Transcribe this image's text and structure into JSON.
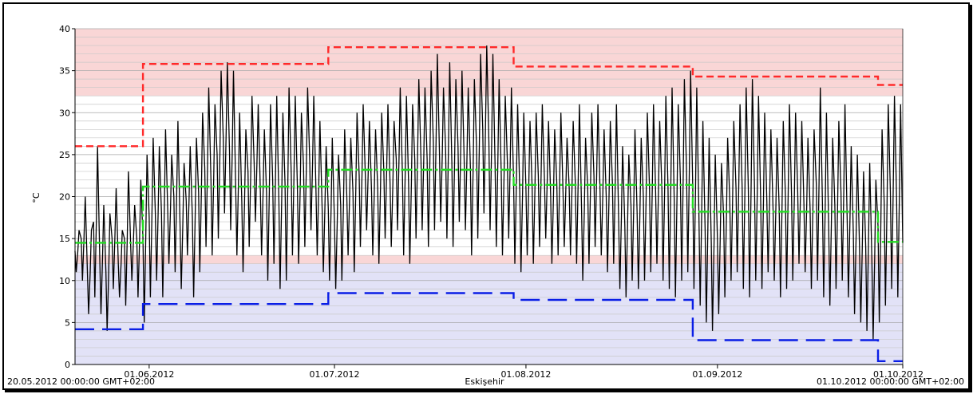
{
  "chart_data": {
    "type": "line",
    "location": "Eskişehir",
    "ylabel": "°C",
    "ylim": [
      0,
      40
    ],
    "yticks": [
      0,
      5,
      10,
      15,
      20,
      25,
      30,
      35,
      40
    ],
    "x_start": "20.05.2012 00:00:00 GMT+02:00",
    "x_end": "01.10.2012 00:00:00 GMT+02:00",
    "x_ticks": [
      {
        "label": "01.06.2012",
        "date": "2012-06-01"
      },
      {
        "label": "01.07.2012",
        "date": "2012-07-01"
      },
      {
        "label": "01.08.2012",
        "date": "2012-08-01"
      },
      {
        "label": "01.09.2012",
        "date": "2012-09-01"
      },
      {
        "label": "01.10.2012",
        "date": "2012-10-01"
      }
    ],
    "grid": true,
    "bands": [
      {
        "from": 32,
        "to": 40,
        "color": "#f9d6d6"
      },
      {
        "from": 12,
        "to": 13,
        "color": "#f9d6d6"
      },
      {
        "from": 0,
        "to": 12,
        "color": "#e2e2f7"
      }
    ],
    "series": [
      {
        "style": "dashed",
        "color": "#ff2a2a",
        "steps": [
          {
            "from": "2012-05-20",
            "to": "2012-05-31",
            "value": 26.0
          },
          {
            "from": "2012-05-31",
            "to": "2012-06-30",
            "value": 35.8
          },
          {
            "from": "2012-06-30",
            "to": "2012-07-30",
            "value": 37.8
          },
          {
            "from": "2012-07-30",
            "to": "2012-08-28",
            "value": 35.5
          },
          {
            "from": "2012-08-28",
            "to": "2012-09-27",
            "value": 34.3
          },
          {
            "from": "2012-09-27",
            "to": "2012-10-01",
            "value": 33.3
          }
        ]
      },
      {
        "style": "dash-dot",
        "color": "#22dd22",
        "steps": [
          {
            "from": "2012-05-20",
            "to": "2012-05-31",
            "value": 14.5
          },
          {
            "from": "2012-05-31",
            "to": "2012-06-30",
            "value": 21.2
          },
          {
            "from": "2012-06-30",
            "to": "2012-07-30",
            "value": 23.2
          },
          {
            "from": "2012-07-30",
            "to": "2012-08-28",
            "value": 21.4
          },
          {
            "from": "2012-08-28",
            "to": "2012-09-27",
            "value": 18.2
          },
          {
            "from": "2012-09-27",
            "to": "2012-10-01",
            "value": 14.6
          }
        ]
      },
      {
        "style": "long-dash",
        "color": "#0a1ee6",
        "steps": [
          {
            "from": "2012-05-20",
            "to": "2012-05-31",
            "value": 4.2
          },
          {
            "from": "2012-05-31",
            "to": "2012-06-30",
            "value": 7.2
          },
          {
            "from": "2012-06-30",
            "to": "2012-07-30",
            "value": 8.5
          },
          {
            "from": "2012-07-30",
            "to": "2012-08-28",
            "value": 7.7
          },
          {
            "from": "2012-08-28",
            "to": "2012-09-27",
            "value": 2.9
          },
          {
            "from": "2012-09-27",
            "to": "2012-10-01",
            "value": 0.4
          }
        ]
      },
      {
        "style": "solid",
        "color": "#000000",
        "resolution": "6-hourly (min / mid / max / mid per day)",
        "daily_minmax": [
          [
            "2012-05-20",
            11,
            16
          ],
          [
            "2012-05-21",
            10,
            20
          ],
          [
            "2012-05-22",
            6,
            16
          ],
          [
            "2012-05-23",
            8,
            26
          ],
          [
            "2012-05-24",
            6,
            19
          ],
          [
            "2012-05-25",
            4,
            18
          ],
          [
            "2012-05-26",
            9,
            21
          ],
          [
            "2012-05-27",
            8,
            16
          ],
          [
            "2012-05-28",
            7,
            23
          ],
          [
            "2012-05-29",
            10,
            19
          ],
          [
            "2012-05-30",
            8,
            22
          ],
          [
            "2012-05-31",
            5,
            25
          ],
          [
            "2012-06-01",
            8,
            27
          ],
          [
            "2012-06-02",
            10,
            26
          ],
          [
            "2012-06-03",
            8,
            28
          ],
          [
            "2012-06-04",
            12,
            25
          ],
          [
            "2012-06-05",
            11,
            29
          ],
          [
            "2012-06-06",
            9,
            24
          ],
          [
            "2012-06-07",
            13,
            26
          ],
          [
            "2012-06-08",
            8,
            27
          ],
          [
            "2012-06-09",
            11,
            30
          ],
          [
            "2012-06-10",
            14,
            33
          ],
          [
            "2012-06-11",
            13,
            31
          ],
          [
            "2012-06-12",
            15,
            35
          ],
          [
            "2012-06-13",
            18,
            36
          ],
          [
            "2012-06-14",
            16,
            35
          ],
          [
            "2012-06-15",
            13,
            30
          ],
          [
            "2012-06-16",
            11,
            28
          ],
          [
            "2012-06-17",
            14,
            32
          ],
          [
            "2012-06-18",
            17,
            31
          ],
          [
            "2012-06-19",
            13,
            28
          ],
          [
            "2012-06-20",
            10,
            31
          ],
          [
            "2012-06-21",
            12,
            32
          ],
          [
            "2012-06-22",
            9,
            30
          ],
          [
            "2012-06-23",
            10,
            33
          ],
          [
            "2012-06-24",
            13,
            32
          ],
          [
            "2012-06-25",
            12,
            30
          ],
          [
            "2012-06-26",
            14,
            33
          ],
          [
            "2012-06-27",
            16,
            32
          ],
          [
            "2012-06-28",
            13,
            29
          ],
          [
            "2012-06-29",
            11,
            26
          ],
          [
            "2012-06-30",
            10,
            27
          ],
          [
            "2012-07-01",
            9,
            25
          ],
          [
            "2012-07-02",
            10,
            28
          ],
          [
            "2012-07-03",
            13,
            27
          ],
          [
            "2012-07-04",
            11,
            30
          ],
          [
            "2012-07-05",
            14,
            31
          ],
          [
            "2012-07-06",
            16,
            29
          ],
          [
            "2012-07-07",
            13,
            28
          ],
          [
            "2012-07-08",
            12,
            30
          ],
          [
            "2012-07-09",
            15,
            31
          ],
          [
            "2012-07-10",
            14,
            29
          ],
          [
            "2012-07-11",
            16,
            33
          ],
          [
            "2012-07-12",
            13,
            32
          ],
          [
            "2012-07-13",
            12,
            31
          ],
          [
            "2012-07-14",
            15,
            34
          ],
          [
            "2012-07-15",
            16,
            33
          ],
          [
            "2012-07-16",
            14,
            35
          ],
          [
            "2012-07-17",
            16,
            37
          ],
          [
            "2012-07-18",
            17,
            33
          ],
          [
            "2012-07-19",
            15,
            36
          ],
          [
            "2012-07-20",
            14,
            34
          ],
          [
            "2012-07-21",
            17,
            35
          ],
          [
            "2012-07-22",
            16,
            33
          ],
          [
            "2012-07-23",
            13,
            34
          ],
          [
            "2012-07-24",
            15,
            37
          ],
          [
            "2012-07-25",
            18,
            38
          ],
          [
            "2012-07-26",
            16,
            37
          ],
          [
            "2012-07-27",
            14,
            34
          ],
          [
            "2012-07-28",
            13,
            32
          ],
          [
            "2012-07-29",
            15,
            33
          ],
          [
            "2012-07-30",
            12,
            31
          ],
          [
            "2012-07-31",
            11,
            30
          ],
          [
            "2012-08-01",
            13,
            29
          ],
          [
            "2012-08-02",
            12,
            30
          ],
          [
            "2012-08-03",
            14,
            31
          ],
          [
            "2012-08-04",
            15,
            29
          ],
          [
            "2012-08-05",
            12,
            28
          ],
          [
            "2012-08-06",
            13,
            30
          ],
          [
            "2012-08-07",
            14,
            27
          ],
          [
            "2012-08-08",
            13,
            29
          ],
          [
            "2012-08-09",
            12,
            31
          ],
          [
            "2012-08-10",
            10,
            27
          ],
          [
            "2012-08-11",
            12,
            30
          ],
          [
            "2012-08-12",
            14,
            31
          ],
          [
            "2012-08-13",
            13,
            28
          ],
          [
            "2012-08-14",
            11,
            29
          ],
          [
            "2012-08-15",
            12,
            31
          ],
          [
            "2012-08-16",
            9,
            26
          ],
          [
            "2012-08-17",
            8,
            25
          ],
          [
            "2012-08-18",
            10,
            28
          ],
          [
            "2012-08-19",
            9,
            27
          ],
          [
            "2012-08-20",
            10,
            30
          ],
          [
            "2012-08-21",
            11,
            31
          ],
          [
            "2012-08-22",
            12,
            29
          ],
          [
            "2012-08-23",
            10,
            32
          ],
          [
            "2012-08-24",
            9,
            33
          ],
          [
            "2012-08-25",
            8,
            31
          ],
          [
            "2012-08-26",
            10,
            34
          ],
          [
            "2012-08-27",
            11,
            35
          ],
          [
            "2012-08-28",
            9,
            33
          ],
          [
            "2012-08-29",
            7,
            29
          ],
          [
            "2012-08-30",
            5,
            27
          ],
          [
            "2012-08-31",
            4,
            25
          ],
          [
            "2012-09-01",
            6,
            24
          ],
          [
            "2012-09-02",
            8,
            27
          ],
          [
            "2012-09-03",
            10,
            29
          ],
          [
            "2012-09-04",
            11,
            31
          ],
          [
            "2012-09-05",
            9,
            33
          ],
          [
            "2012-09-06",
            8,
            34
          ],
          [
            "2012-09-07",
            10,
            32
          ],
          [
            "2012-09-08",
            9,
            30
          ],
          [
            "2012-09-09",
            11,
            28
          ],
          [
            "2012-09-10",
            10,
            27
          ],
          [
            "2012-09-11",
            8,
            29
          ],
          [
            "2012-09-12",
            9,
            31
          ],
          [
            "2012-09-13",
            10,
            30
          ],
          [
            "2012-09-14",
            12,
            29
          ],
          [
            "2012-09-15",
            11,
            27
          ],
          [
            "2012-09-16",
            9,
            28
          ],
          [
            "2012-09-17",
            10,
            33
          ],
          [
            "2012-09-18",
            8,
            30
          ],
          [
            "2012-09-19",
            7,
            27
          ],
          [
            "2012-09-20",
            9,
            29
          ],
          [
            "2012-09-21",
            10,
            31
          ],
          [
            "2012-09-22",
            8,
            26
          ],
          [
            "2012-09-23",
            6,
            25
          ],
          [
            "2012-09-24",
            5,
            23
          ],
          [
            "2012-09-25",
            4,
            24
          ],
          [
            "2012-09-26",
            3,
            22
          ],
          [
            "2012-09-27",
            5,
            28
          ],
          [
            "2012-09-28",
            7,
            31
          ],
          [
            "2012-09-29",
            9,
            32
          ],
          [
            "2012-09-30",
            8,
            31
          ],
          [
            "2012-10-01",
            11,
            18
          ]
        ]
      }
    ]
  }
}
